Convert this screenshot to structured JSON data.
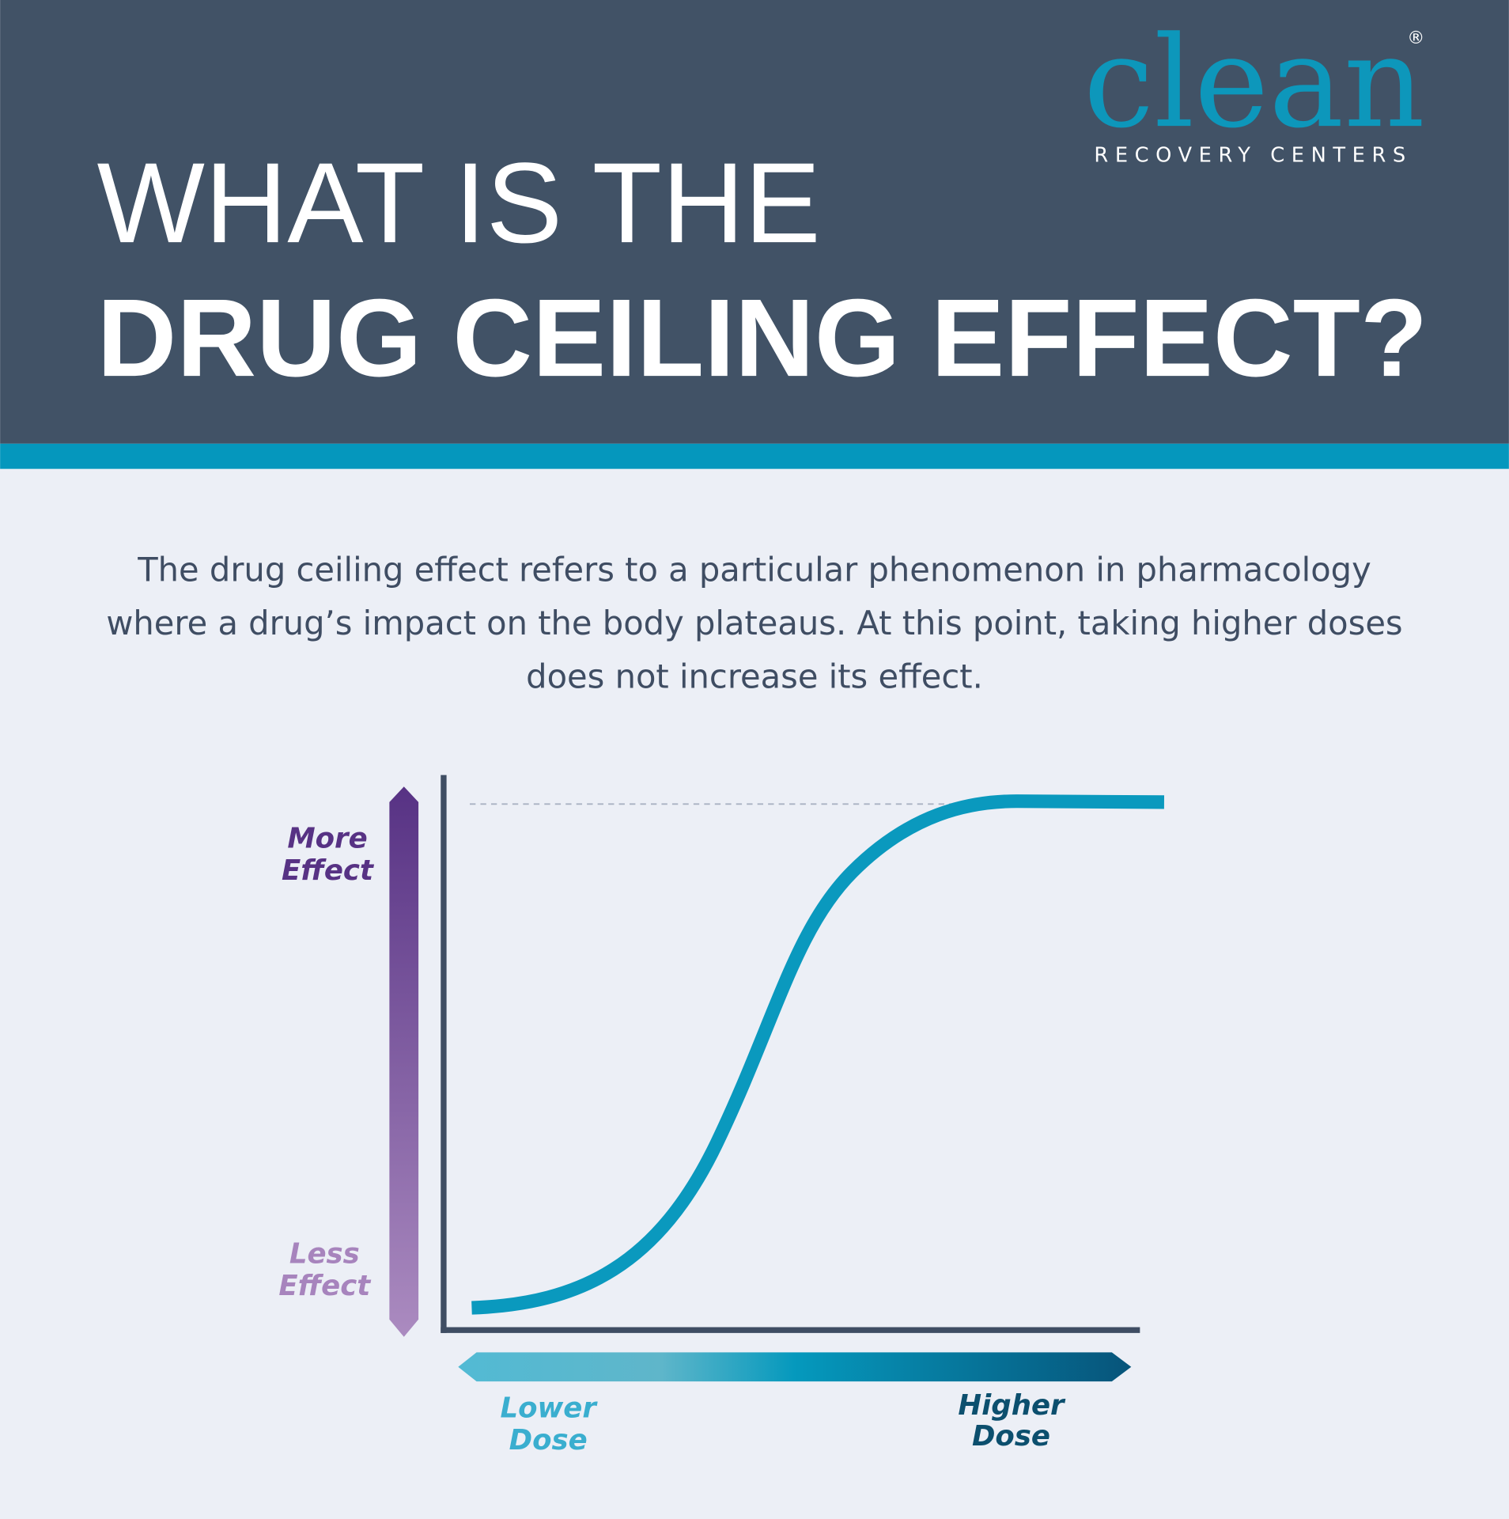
{
  "header": {
    "logo": "clean",
    "registered": "®",
    "tagline": "RECOVERY CENTERS",
    "title_line1": "WHAT IS THE",
    "title_line2": "DRUG CEILING EFFECT?"
  },
  "description": {
    "lines": [
      "The drug ceiling effect refers to a particular phenomenon in pharmacology",
      "where a drug’s impact on the body plateaus. At this point, taking higher doses",
      "does not increase its effect."
    ]
  },
  "diagram": {
    "more_effect": [
      "More",
      "Effect"
    ],
    "less_effect": [
      "Less",
      "Effect"
    ],
    "lower_dose": [
      "Lower",
      "Dose"
    ],
    "higher_dose": [
      "Higher",
      "Dose"
    ]
  }
}
